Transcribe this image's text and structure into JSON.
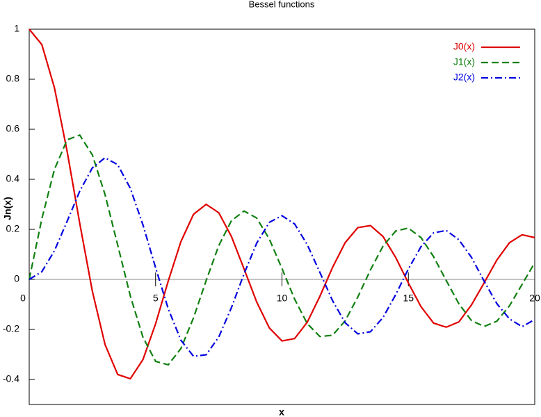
{
  "chart_data": {
    "type": "line",
    "title": "Bessel functions",
    "x_label": "x",
    "y_label": "Jn(x)",
    "x": [
      0,
      0.5,
      1,
      1.5,
      2,
      2.5,
      3,
      3.5,
      4,
      4.5,
      5,
      5.5,
      6,
      6.5,
      7,
      7.5,
      8,
      8.5,
      9,
      9.5,
      10,
      10.5,
      11,
      11.5,
      12,
      12.5,
      13,
      13.5,
      14,
      14.5,
      15,
      15.5,
      16,
      16.5,
      17,
      17.5,
      18,
      18.5,
      19,
      19.5,
      20
    ],
    "series": [
      {
        "name": "J0(x)",
        "color": "#e00000",
        "dash": "solid",
        "values": [
          1,
          0.9385,
          0.7652,
          0.5118,
          0.2239,
          -0.0484,
          -0.2601,
          -0.3801,
          -0.3971,
          -0.3205,
          -0.1776,
          -0.0068,
          0.1506,
          0.2601,
          0.3001,
          0.2663,
          0.1717,
          0.0419,
          -0.0903,
          -0.1939,
          -0.2459,
          -0.2366,
          -0.1712,
          -0.0677,
          0.0477,
          0.1469,
          0.2069,
          0.215,
          0.1711,
          0.0875,
          -0.0142,
          -0.1092,
          -0.1749,
          -0.191,
          -0.1699,
          -0.1014,
          -0.0134,
          0.0773,
          0.1466,
          0.1785,
          0.167
        ]
      },
      {
        "name": "J1(x)",
        "color": "#108010",
        "dash": "dashed",
        "values": [
          0,
          0.2423,
          0.4401,
          0.5579,
          0.5767,
          0.4971,
          0.3391,
          0.1374,
          -0.066,
          -0.2311,
          -0.3276,
          -0.3414,
          -0.2767,
          -0.1538,
          -0.0047,
          0.1352,
          0.2346,
          0.2731,
          0.2453,
          0.1613,
          0.0435,
          -0.0789,
          -0.1768,
          -0.2284,
          -0.2234,
          -0.1655,
          -0.0703,
          0.038,
          0.1334,
          0.1934,
          0.2051,
          0.1672,
          0.0904,
          -0.0047,
          -0.0977,
          -0.165,
          -0.188,
          -0.1672,
          -0.1057,
          -0.0199,
          0.0668
        ]
      },
      {
        "name": "J2(x)",
        "color": "#0000e0",
        "dash": "dashdot",
        "values": [
          0,
          0.0306,
          0.1149,
          0.2321,
          0.3528,
          0.4461,
          0.4861,
          0.4586,
          0.3641,
          0.2178,
          0.0466,
          -0.1173,
          -0.2429,
          -0.3074,
          -0.3014,
          -0.2303,
          -0.113,
          0.0223,
          0.1448,
          0.2279,
          0.2546,
          0.2216,
          0.139,
          0.0279,
          -0.0849,
          -0.1734,
          -0.2177,
          -0.2094,
          -0.152,
          -0.0609,
          0.0416,
          0.1307,
          0.1862,
          0.1955,
          0.1584,
          0.0875,
          -0.0075,
          -0.0969,
          -0.1578,
          -0.189,
          -0.1603
        ]
      }
    ],
    "xlim": [
      0,
      20
    ],
    "xticks": [
      0,
      5,
      10,
      15,
      20
    ],
    "ylim": [
      -0.5,
      1
    ],
    "yticks": [
      -0.4,
      -0.2,
      0,
      0.2,
      0.4,
      0.6,
      0.8,
      1
    ],
    "legend": "upper right"
  }
}
